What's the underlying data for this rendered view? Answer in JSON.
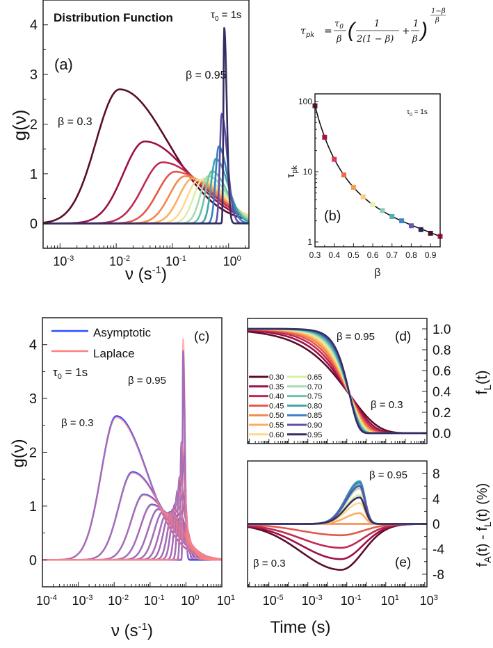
{
  "betas": [
    0.3,
    0.35,
    0.4,
    0.45,
    0.5,
    0.55,
    0.6,
    0.65,
    0.7,
    0.75,
    0.8,
    0.85,
    0.9,
    0.95
  ],
  "beta_labels": [
    "0.30",
    "0.35",
    "0.40",
    "0.45",
    "0.50",
    "0.55",
    "0.60",
    "0.65",
    "0.70",
    "0.75",
    "0.80",
    "0.85",
    "0.90",
    "0.95"
  ],
  "colors": [
    "#5a0c2c",
    "#9b1048",
    "#c02a4f",
    "#e4574a",
    "#f5874d",
    "#fbae5e",
    "#fdd98e",
    "#d9eea8",
    "#a6dab0",
    "#6cc3a8",
    "#3fa6a8",
    "#3680c0",
    "#5e4fa8",
    "#352e62"
  ],
  "marker_colors": [
    "#6a0f30",
    "#a8124a",
    "#d93a55",
    "#ee6a4a",
    "#f79a4e",
    "#fdcb80",
    "#e3f2b0",
    "#8ccfb0",
    "#4fb2ae",
    "#3a86c8",
    "#6a56b0",
    "#2b2250",
    "#4a0d2a",
    "#b0104a"
  ],
  "formula": {
    "lhs": "τ",
    "lhs_sub": "pk",
    "eq": "=",
    "num": "τ",
    "num_sub": "0",
    "den": "β",
    "f1_num": "1",
    "f1_den": "2(1 − β)",
    "plus": "+",
    "f2_num": "1",
    "f2_den": "β",
    "exp_num": "1−β",
    "exp_den": "β"
  },
  "chart_data": [
    {
      "panel": "a",
      "type": "line",
      "title": "Distribution Function",
      "label": "(a)",
      "annotation_tau": "τ",
      "annotation_tau_sub": "0",
      "annotation_tau_rest": " = 1s",
      "beta_hi": "β = 0.95",
      "beta_lo": "β = 0.3",
      "xlabel": "ν (s",
      "xlabel_sup": "-1",
      "xlabel_end": ")",
      "ylabel": "g(ν)",
      "xscale": "log",
      "xlim": [
        0.0005,
        2.3
      ],
      "ylim": [
        -0.5,
        4.5
      ],
      "xticks": [
        "10",
        "10",
        "10",
        "10"
      ],
      "xtick_exp": [
        "-3",
        "-2",
        "-1",
        "0"
      ],
      "yticks": [
        "0",
        "1",
        "2",
        "3",
        "4"
      ],
      "peak_heights": [
        2.7,
        1.65,
        1.23,
        1.04,
        0.95,
        0.9,
        0.88,
        0.9,
        0.95,
        1.05,
        1.3,
        1.55,
        2.2,
        3.95
      ]
    },
    {
      "panel": "b",
      "type": "scatter",
      "label": "(b)",
      "xlabel": "β",
      "ylabel": "τ",
      "ylabel_sub": "pk",
      "annotation_tau": "τ",
      "annotation_tau_sub": "0",
      "annotation_tau_rest": " = 1s",
      "yscale": "log",
      "xlim": [
        0.3,
        0.95
      ],
      "ylim": [
        0.85,
        125
      ],
      "xticks": [
        "0.3",
        "0.4",
        "0.5",
        "0.6",
        "0.7",
        "0.8",
        "0.9"
      ],
      "yticks": [
        "1",
        "10",
        "100"
      ],
      "tau_pk": [
        87,
        31,
        15,
        9.0,
        6.0,
        4.4,
        3.4,
        2.8,
        2.3,
        2.0,
        1.7,
        1.5,
        1.33,
        1.2
      ]
    },
    {
      "panel": "c",
      "type": "line",
      "label": "(c)",
      "legend": [
        "Asymptotic",
        "Laplace"
      ],
      "legend_colors": [
        "#2a4dff",
        "#ff8080"
      ],
      "annotation_tau": "τ",
      "annotation_tau_sub": "0",
      "annotation_tau_rest": " = 1s",
      "beta_hi": "β = 0.95",
      "beta_lo": "β = 0.3",
      "xlabel": "ν (s",
      "xlabel_sup": "-1",
      "xlabel_end": ")",
      "ylabel": "g(ν)",
      "xscale": "log",
      "xlim": [
        0.0001,
        10
      ],
      "ylim": [
        -0.5,
        4.5
      ],
      "xticks": [
        "10",
        "10",
        "10",
        "10",
        "10",
        "10"
      ],
      "xtick_exp": [
        "-4",
        "-3",
        "-2",
        "-1",
        "0",
        "1"
      ],
      "yticks": [
        "0",
        "1",
        "2",
        "3",
        "4"
      ]
    },
    {
      "panel": "d",
      "type": "line",
      "label": "(d)",
      "beta_hi": "β = 0.95",
      "beta_lo": "β = 0.3",
      "ylabel": "f",
      "ylabel_sub": "L",
      "ylabel_end": "(t)",
      "xscale": "log",
      "xlim": [
        8e-07,
        1300
      ],
      "ylim": [
        -0.1,
        1.1
      ],
      "yticks": [
        "0.0",
        "0.2",
        "0.4",
        "0.6",
        "0.8",
        "1.0"
      ],
      "tau": 0.14
    },
    {
      "panel": "e",
      "type": "line",
      "label": "(e)",
      "beta_hi": "β = 0.95",
      "beta_lo": "β = 0.3",
      "ylabel": "f",
      "ylabel_sub1": "A",
      "ylabel_mid": "(t) - f",
      "ylabel_sub2": "L",
      "ylabel_end": "(t) (%)",
      "xlabel": "Time (s)",
      "xscale": "log",
      "xlim": [
        8e-07,
        1300
      ],
      "ylim": [
        -10,
        10
      ],
      "xticks": [
        "10",
        "10",
        "10",
        "10",
        "10"
      ],
      "xtick_exp": [
        "-5",
        "-3",
        "-1",
        "1",
        "3"
      ],
      "yticks": [
        "-8",
        "-4",
        "0",
        "4",
        "8"
      ],
      "peak_values": [
        -7.3,
        -5.6,
        -3.8,
        -1.8,
        0,
        1.7,
        3.3,
        4.6,
        5.6,
        6.3,
        6.8,
        6.6,
        6.0,
        4.2
      ]
    }
  ]
}
